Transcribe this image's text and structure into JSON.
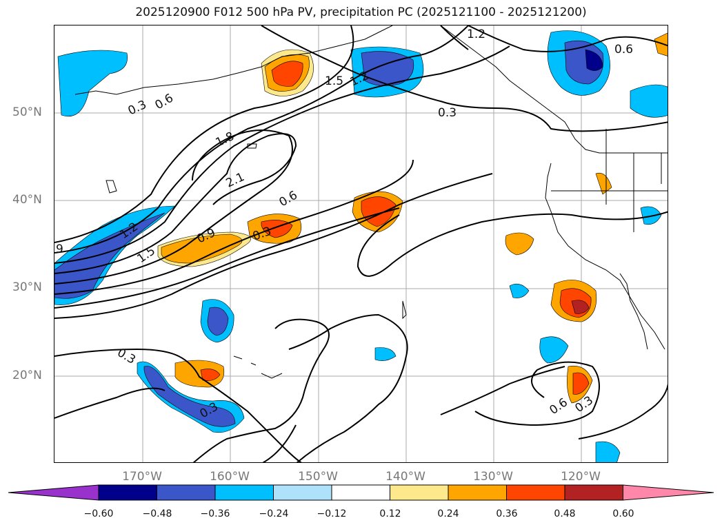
{
  "title": "2025120900 F012 500 hPa PV, precipitation PC (2025121100 - 2025121200)",
  "colors": {
    "neg_extend": "#9932cc",
    "bins": [
      "#00008b",
      "#3a56c8",
      "#00bfff",
      "#aee1fa",
      "#ffffff",
      "#fde98b",
      "#ffa500",
      "#ff4500",
      "#b22222"
    ],
    "pos_extend": "#ff88aa",
    "lines": "#000000",
    "grid": "#aaaaaa"
  },
  "axes": {
    "lat_labels": [
      "50°N",
      "40°N",
      "30°N",
      "20°N"
    ],
    "lon_labels": [
      "170°W",
      "160°W",
      "150°W",
      "140°W",
      "130°W",
      "120°W"
    ]
  },
  "colorbar": {
    "ticks": [
      "−0.60",
      "−0.48",
      "−0.36",
      "−0.24",
      "−0.12",
      "0.12",
      "0.24",
      "0.36",
      "0.48",
      "0.60"
    ]
  },
  "contour_labels": [
    "1.2",
    "0.6",
    "1.5",
    "1.2",
    "0.3",
    "0.3",
    "0.6",
    "1.8",
    "2.1",
    "0.6",
    "1.2",
    "1.5",
    "0.9",
    "0.3",
    "9",
    "0.3",
    "0.3",
    "0.6",
    "0.3"
  ]
}
